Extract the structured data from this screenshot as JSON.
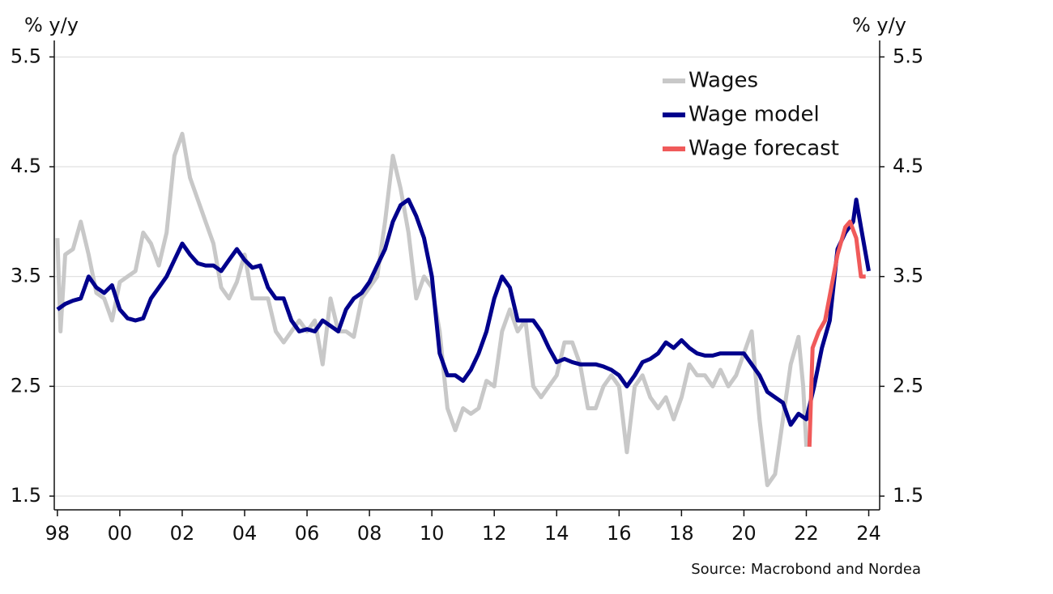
{
  "chart_data": {
    "type": "line",
    "y_label": "% y/y",
    "y2_label": "% y/y",
    "source": "Source: Macrobond and Nordea",
    "xlim": [
      1997.9,
      2024.35
    ],
    "xticks": [
      {
        "value": 1998,
        "label": "98"
      },
      {
        "value": 2000,
        "label": "00"
      },
      {
        "value": 2002,
        "label": "02"
      },
      {
        "value": 2004,
        "label": "04"
      },
      {
        "value": 2006,
        "label": "06"
      },
      {
        "value": 2008,
        "label": "08"
      },
      {
        "value": 2010,
        "label": "10"
      },
      {
        "value": 2012,
        "label": "12"
      },
      {
        "value": 2014,
        "label": "14"
      },
      {
        "value": 2016,
        "label": "16"
      },
      {
        "value": 2018,
        "label": "18"
      },
      {
        "value": 2020,
        "label": "20"
      },
      {
        "value": 2022,
        "label": "22"
      },
      {
        "value": 2024,
        "label": "24"
      }
    ],
    "ylim": [
      1.375,
      5.65
    ],
    "yticks": [
      1.5,
      2.5,
      3.5,
      4.5,
      5.5
    ],
    "y2lim": [
      1.375,
      5.65
    ],
    "y2ticks": [
      1.5,
      2.5,
      3.5,
      4.5,
      5.5
    ],
    "grid": true,
    "legend": "upper right",
    "series": [
      {
        "name": "Wages",
        "color": "#c8c8c8",
        "x": [
          1998.0,
          1998.1,
          1998.25,
          1998.5,
          1998.75,
          1999.0,
          1999.25,
          1999.5,
          1999.75,
          2000.0,
          2000.25,
          2000.5,
          2000.75,
          2001.0,
          2001.25,
          2001.5,
          2001.75,
          2002.0,
          2002.25,
          2002.5,
          2002.75,
          2003.0,
          2003.25,
          2003.5,
          2003.75,
          2004.0,
          2004.25,
          2004.5,
          2004.75,
          2005.0,
          2005.25,
          2005.5,
          2005.75,
          2006.0,
          2006.25,
          2006.5,
          2006.75,
          2007.0,
          2007.25,
          2007.5,
          2007.75,
          2008.0,
          2008.25,
          2008.5,
          2008.75,
          2009.0,
          2009.25,
          2009.5,
          2009.75,
          2010.0,
          2010.25,
          2010.5,
          2010.75,
          2011.0,
          2011.25,
          2011.5,
          2011.75,
          2012.0,
          2012.25,
          2012.5,
          2012.75,
          2013.0,
          2013.25,
          2013.5,
          2013.75,
          2014.0,
          2014.25,
          2014.5,
          2014.75,
          2015.0,
          2015.25,
          2015.5,
          2015.75,
          2016.0,
          2016.25,
          2016.5,
          2016.75,
          2017.0,
          2017.25,
          2017.5,
          2017.75,
          2018.0,
          2018.25,
          2018.5,
          2018.75,
          2019.0,
          2019.25,
          2019.5,
          2019.75,
          2020.0,
          2020.25,
          2020.5,
          2020.75,
          2021.0,
          2021.25,
          2021.5,
          2021.75,
          2021.9,
          2022.0
        ],
        "values": [
          3.85,
          3.0,
          3.7,
          3.75,
          4.0,
          3.7,
          3.35,
          3.3,
          3.1,
          3.45,
          3.5,
          3.55,
          3.9,
          3.8,
          3.6,
          3.9,
          4.6,
          4.8,
          4.4,
          4.2,
          4.0,
          3.8,
          3.4,
          3.3,
          3.45,
          3.7,
          3.3,
          3.3,
          3.3,
          3.0,
          2.9,
          3.0,
          3.1,
          3.0,
          3.1,
          2.7,
          3.3,
          3.0,
          3.0,
          2.95,
          3.3,
          3.4,
          3.5,
          4.0,
          4.6,
          4.3,
          3.9,
          3.3,
          3.5,
          3.4,
          3.0,
          2.3,
          2.1,
          2.3,
          2.25,
          2.3,
          2.55,
          2.5,
          3.0,
          3.2,
          3.0,
          3.1,
          2.5,
          2.4,
          2.5,
          2.6,
          2.9,
          2.9,
          2.7,
          2.3,
          2.3,
          2.5,
          2.6,
          2.5,
          1.9,
          2.5,
          2.6,
          2.4,
          2.3,
          2.4,
          2.2,
          2.4,
          2.7,
          2.6,
          2.6,
          2.5,
          2.65,
          2.5,
          2.6,
          2.8,
          3.0,
          2.2,
          1.6,
          1.7,
          2.2,
          2.7,
          2.95,
          2.5,
          1.95
        ]
      },
      {
        "name": "Wage model",
        "color": "#00008c",
        "x": [
          1998.0,
          1998.25,
          1998.5,
          1998.75,
          1999.0,
          1999.25,
          1999.5,
          1999.75,
          2000.0,
          2000.25,
          2000.5,
          2000.75,
          2001.0,
          2001.25,
          2001.5,
          2001.75,
          2002.0,
          2002.25,
          2002.5,
          2002.75,
          2003.0,
          2003.25,
          2003.5,
          2003.75,
          2004.0,
          2004.25,
          2004.5,
          2004.75,
          2005.0,
          2005.25,
          2005.5,
          2005.75,
          2006.0,
          2006.25,
          2006.5,
          2006.75,
          2007.0,
          2007.25,
          2007.5,
          2007.75,
          2008.0,
          2008.25,
          2008.5,
          2008.75,
          2009.0,
          2009.25,
          2009.5,
          2009.75,
          2010.0,
          2010.25,
          2010.5,
          2010.75,
          2011.0,
          2011.25,
          2011.5,
          2011.75,
          2012.0,
          2012.25,
          2012.5,
          2012.75,
          2013.0,
          2013.25,
          2013.5,
          2013.75,
          2014.0,
          2014.25,
          2014.5,
          2014.75,
          2015.0,
          2015.25,
          2015.5,
          2015.75,
          2016.0,
          2016.25,
          2016.5,
          2016.75,
          2017.0,
          2017.25,
          2017.5,
          2017.75,
          2018.0,
          2018.25,
          2018.5,
          2018.75,
          2019.0,
          2019.25,
          2019.5,
          2019.75,
          2020.0,
          2020.25,
          2020.5,
          2020.75,
          2021.0,
          2021.25,
          2021.5,
          2021.75,
          2022.0,
          2022.25,
          2022.5,
          2022.75,
          2023.0,
          2023.25,
          2023.5,
          2023.6,
          2023.75,
          2024.0
        ],
        "values": [
          3.2,
          3.25,
          3.28,
          3.3,
          3.5,
          3.4,
          3.35,
          3.42,
          3.2,
          3.12,
          3.1,
          3.12,
          3.3,
          3.4,
          3.5,
          3.65,
          3.8,
          3.7,
          3.62,
          3.6,
          3.6,
          3.55,
          3.65,
          3.75,
          3.65,
          3.58,
          3.6,
          3.4,
          3.3,
          3.3,
          3.1,
          3.0,
          3.02,
          3.0,
          3.1,
          3.05,
          3.0,
          3.2,
          3.3,
          3.35,
          3.45,
          3.6,
          3.75,
          4.0,
          4.15,
          4.2,
          4.05,
          3.85,
          3.5,
          2.8,
          2.6,
          2.6,
          2.55,
          2.65,
          2.8,
          3.0,
          3.3,
          3.5,
          3.4,
          3.1,
          3.1,
          3.1,
          3.0,
          2.85,
          2.72,
          2.75,
          2.72,
          2.7,
          2.7,
          2.7,
          2.68,
          2.65,
          2.6,
          2.5,
          2.6,
          2.72,
          2.75,
          2.8,
          2.9,
          2.85,
          2.92,
          2.85,
          2.8,
          2.78,
          2.78,
          2.8,
          2.8,
          2.8,
          2.8,
          2.7,
          2.6,
          2.45,
          2.4,
          2.35,
          2.15,
          2.25,
          2.2,
          2.5,
          2.85,
          3.1,
          3.75,
          3.9,
          4.0,
          4.2,
          3.95,
          3.55
        ]
      },
      {
        "name": "Wage forecast",
        "color": "#f05a5a",
        "x": [
          2022.1,
          2022.2,
          2022.4,
          2022.6,
          2022.8,
          2023.0,
          2023.25,
          2023.4,
          2023.6,
          2023.75,
          2023.9
        ],
        "values": [
          1.95,
          2.85,
          3.0,
          3.1,
          3.4,
          3.7,
          3.95,
          4.0,
          3.85,
          3.5,
          3.5
        ]
      }
    ]
  }
}
